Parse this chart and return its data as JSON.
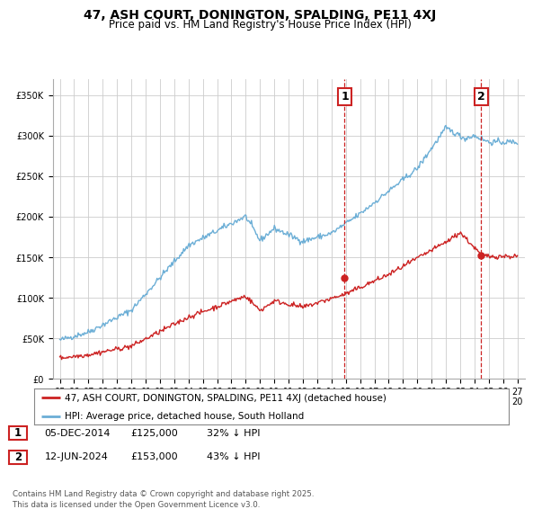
{
  "title": "47, ASH COURT, DONINGTON, SPALDING, PE11 4XJ",
  "subtitle": "Price paid vs. HM Land Registry's House Price Index (HPI)",
  "ylabel_ticks": [
    0,
    50000,
    100000,
    150000,
    200000,
    250000,
    300000,
    350000
  ],
  "ylabel_labels": [
    "£0",
    "£50K",
    "£100K",
    "£150K",
    "£200K",
    "£250K",
    "£300K",
    "£350K"
  ],
  "xlim": [
    1994.5,
    2027.5
  ],
  "ylim": [
    0,
    370000
  ],
  "hpi_color": "#6baed6",
  "price_color": "#cc2222",
  "marker1_date": 2014.92,
  "marker2_date": 2024.45,
  "marker1_price": 125000,
  "marker2_price": 153000,
  "legend_line1": "47, ASH COURT, DONINGTON, SPALDING, PE11 4XJ (detached house)",
  "legend_line2": "HPI: Average price, detached house, South Holland",
  "table_row1": [
    "1",
    "05-DEC-2014",
    "£125,000",
    "32% ↓ HPI"
  ],
  "table_row2": [
    "2",
    "12-JUN-2024",
    "£153,000",
    "43% ↓ HPI"
  ],
  "footnote": "Contains HM Land Registry data © Crown copyright and database right 2025.\nThis data is licensed under the Open Government Licence v3.0.",
  "bg_color": "#ffffff",
  "grid_color": "#cccccc",
  "title_fontsize": 10,
  "subtitle_fontsize": 8.5,
  "tick_fontsize": 7,
  "legend_fontsize": 7.5,
  "table_fontsize": 8
}
